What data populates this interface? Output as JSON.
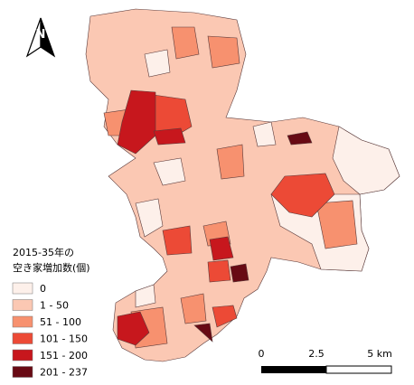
{
  "north_arrow": {
    "label": "N"
  },
  "legend": {
    "title": [
      "2015-35年の",
      "空き家増加数(個)"
    ],
    "items": [
      {
        "label": "0",
        "color": "#fdf0ea"
      },
      {
        "label": "1 - 50",
        "color": "#fbc8b3"
      },
      {
        "label": "51 - 100",
        "color": "#f7916f"
      },
      {
        "label": "101 - 150",
        "color": "#ec4a36"
      },
      {
        "label": "151 - 200",
        "color": "#c7171d"
      },
      {
        "label": "201 - 237",
        "color": "#680a14"
      }
    ]
  },
  "scale_bar": {
    "labels": [
      "0",
      "2.5",
      "5 km"
    ]
  }
}
